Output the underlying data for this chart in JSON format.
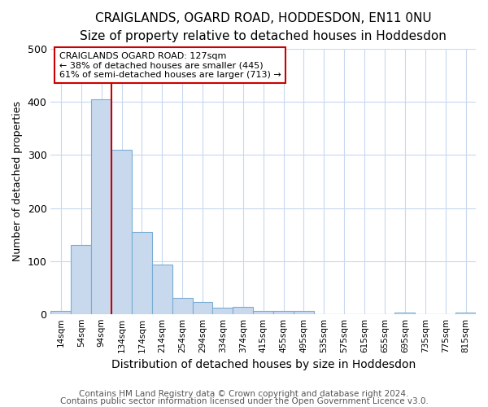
{
  "title": "CRAIGLANDS, OGARD ROAD, HODDESDON, EN11 0NU",
  "subtitle": "Size of property relative to detached houses in Hoddesdon",
  "xlabel": "Distribution of detached houses by size in Hoddesdon",
  "ylabel": "Number of detached properties",
  "footnote1": "Contains HM Land Registry data © Crown copyright and database right 2024.",
  "footnote2": "Contains public sector information licensed under the Open Government Licence v3.0.",
  "bar_labels": [
    "14sqm",
    "54sqm",
    "94sqm",
    "134sqm",
    "174sqm",
    "214sqm",
    "254sqm",
    "294sqm",
    "334sqm",
    "374sqm",
    "415sqm",
    "455sqm",
    "495sqm",
    "535sqm",
    "575sqm",
    "615sqm",
    "655sqm",
    "695sqm",
    "735sqm",
    "775sqm",
    "815sqm"
  ],
  "bar_values": [
    5,
    130,
    405,
    310,
    155,
    93,
    30,
    22,
    12,
    13,
    5,
    6,
    6,
    0,
    0,
    0,
    0,
    3,
    0,
    0,
    2
  ],
  "bar_color": "#c8d9ee",
  "bar_edge_color": "#7aadd4",
  "vline_x": 2.5,
  "vline_color": "#cc0000",
  "annotation_title": "CRAIGLANDS OGARD ROAD: 127sqm",
  "annotation_line2": "← 38% of detached houses are smaller (445)",
  "annotation_line3": "61% of semi-detached houses are larger (713) →",
  "annotation_box_color": "#ffffff",
  "annotation_box_edge": "#cc0000",
  "ylim": [
    0,
    500
  ],
  "background_color": "#ffffff",
  "grid_color": "#c8d8ee",
  "title_fontsize": 11,
  "subtitle_fontsize": 10,
  "xlabel_fontsize": 10,
  "ylabel_fontsize": 9,
  "footnote_fontsize": 7.5,
  "annotation_fontsize": 8
}
